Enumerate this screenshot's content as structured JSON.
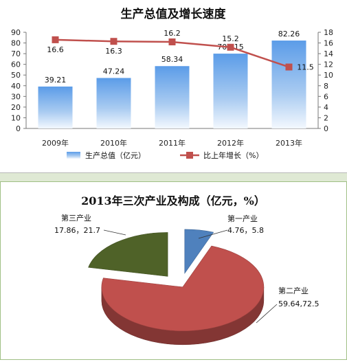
{
  "chart_data": [
    {
      "type": "bar",
      "title": "生产总值及增长速度",
      "categories": [
        "2009年",
        "2010年",
        "2011年",
        "2012年",
        "2013年"
      ],
      "series": [
        {
          "name": "生产总值（亿元）",
          "type": "bar",
          "axis": "left",
          "values": [
            39.21,
            47.24,
            58.34,
            70.015,
            82.26
          ],
          "labels": [
            "39.21",
            "47.24",
            "58.34",
            "70.015",
            "82.26"
          ],
          "color": "#6fa8e6"
        },
        {
          "name": "比上年增长（%）",
          "type": "line",
          "axis": "right",
          "values": [
            16.6,
            16.3,
            16.2,
            15.2,
            11.5
          ],
          "labels": [
            "16.6",
            "16.3",
            "16.2",
            "15.2",
            "11.5"
          ],
          "color": "#c0504d"
        }
      ],
      "y_left": {
        "min": 0,
        "max": 90,
        "ticks": [
          "0",
          "10",
          "20",
          "30",
          "40",
          "50",
          "60",
          "70",
          "80",
          "90"
        ]
      },
      "y_right": {
        "min": 0,
        "max": 18,
        "ticks": [
          "0",
          "2",
          "4",
          "6",
          "8",
          "10",
          "12",
          "14",
          "16",
          "18"
        ]
      },
      "legend_position": "bottom",
      "grid": false
    },
    {
      "type": "pie",
      "title": "2013年三次产业及构成（亿元，%）",
      "slices": [
        {
          "name": "第一产业",
          "value": 4.76,
          "percent": 5.8,
          "label": "4.76，5.8",
          "color": "#4f81bd"
        },
        {
          "name": "第二产业",
          "value": 59.64,
          "percent": 72.5,
          "label": "59.64,72.5",
          "color": "#c0504d"
        },
        {
          "name": "第三产业",
          "value": 17.86,
          "percent": 21.7,
          "label": "17.86，21.7",
          "color": "#4f6228"
        }
      ],
      "style": "3d-exploded"
    }
  ]
}
